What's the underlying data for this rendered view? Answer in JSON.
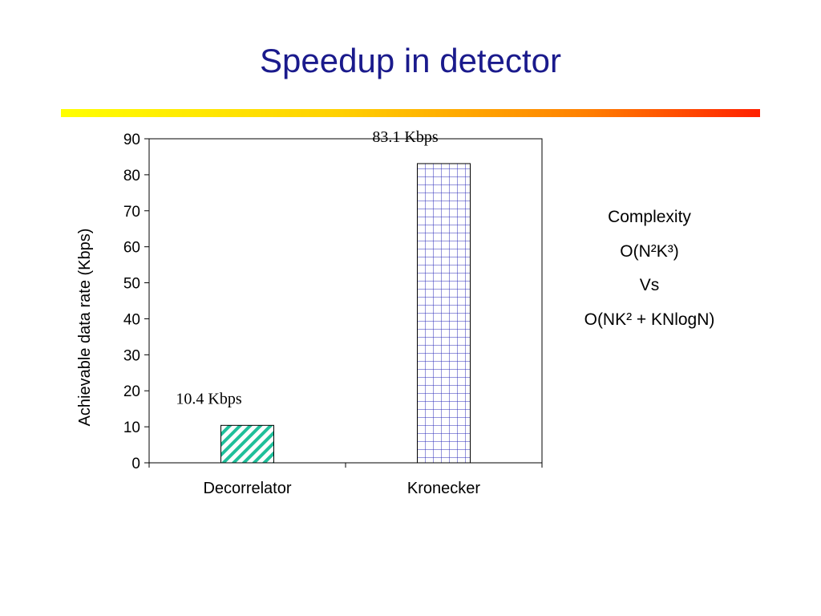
{
  "slide": {
    "title": "Speedup in detector"
  },
  "chart_data": {
    "type": "bar",
    "categories": [
      "Decorrelator",
      "Kronecker"
    ],
    "values": [
      10.4,
      83.1
    ],
    "data_labels": [
      "10.4 Kbps",
      "83.1 Kbps"
    ],
    "title": "",
    "xlabel": "",
    "ylabel": "Achievable data rate (Kbps)",
    "ylim": [
      0,
      90
    ],
    "yticks": [
      0,
      10,
      20,
      30,
      40,
      50,
      60,
      70,
      80,
      90
    ],
    "grid": false,
    "bar_patterns": [
      "diagonal-hatch",
      "crosshatch-grid"
    ],
    "bar_colors": [
      "#1fbf9a",
      "#2b2bb8"
    ]
  },
  "complexity_note": {
    "line1": "Complexity",
    "line2": "O(N²K³)",
    "line3": "Vs",
    "line4": "O(NK² + KNlogN)"
  }
}
